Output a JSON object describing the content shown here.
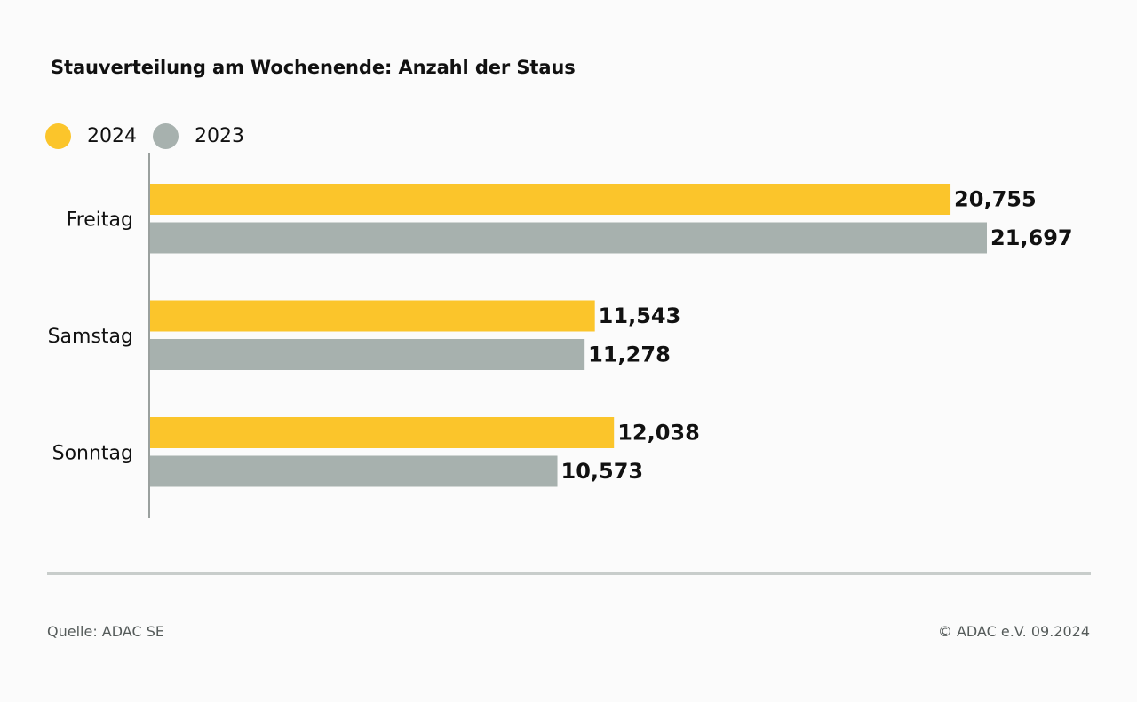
{
  "colors": {
    "series_2024": "#fbc52b",
    "series_2023": "#a7b1ae",
    "axis": "#9aa09e",
    "label": "#111111",
    "footer_text": "#555b5a",
    "footer_rule": "#c8cdcb"
  },
  "chart_data": {
    "type": "bar",
    "orientation": "horizontal",
    "title": "Stauverteilung am Wochenende: Anzahl der Staus",
    "categories": [
      "Freitag",
      "Samstag",
      "Sonntag"
    ],
    "series": [
      {
        "name": "2024",
        "color": "#fbc52b",
        "values": [
          20755,
          11543,
          12038
        ],
        "labels": [
          "20,755",
          "11,543",
          "12,038"
        ]
      },
      {
        "name": "2023",
        "color": "#a7b1ae",
        "values": [
          21697,
          11278,
          10573
        ],
        "labels": [
          "21,697",
          "11,278",
          "10,573"
        ]
      }
    ],
    "legend_position": "top-left",
    "grid": false,
    "xlim": [
      0,
      21697
    ]
  },
  "footer": {
    "source": "Quelle: ADAC SE",
    "copyright": "© ADAC e.V. 09.2024"
  }
}
